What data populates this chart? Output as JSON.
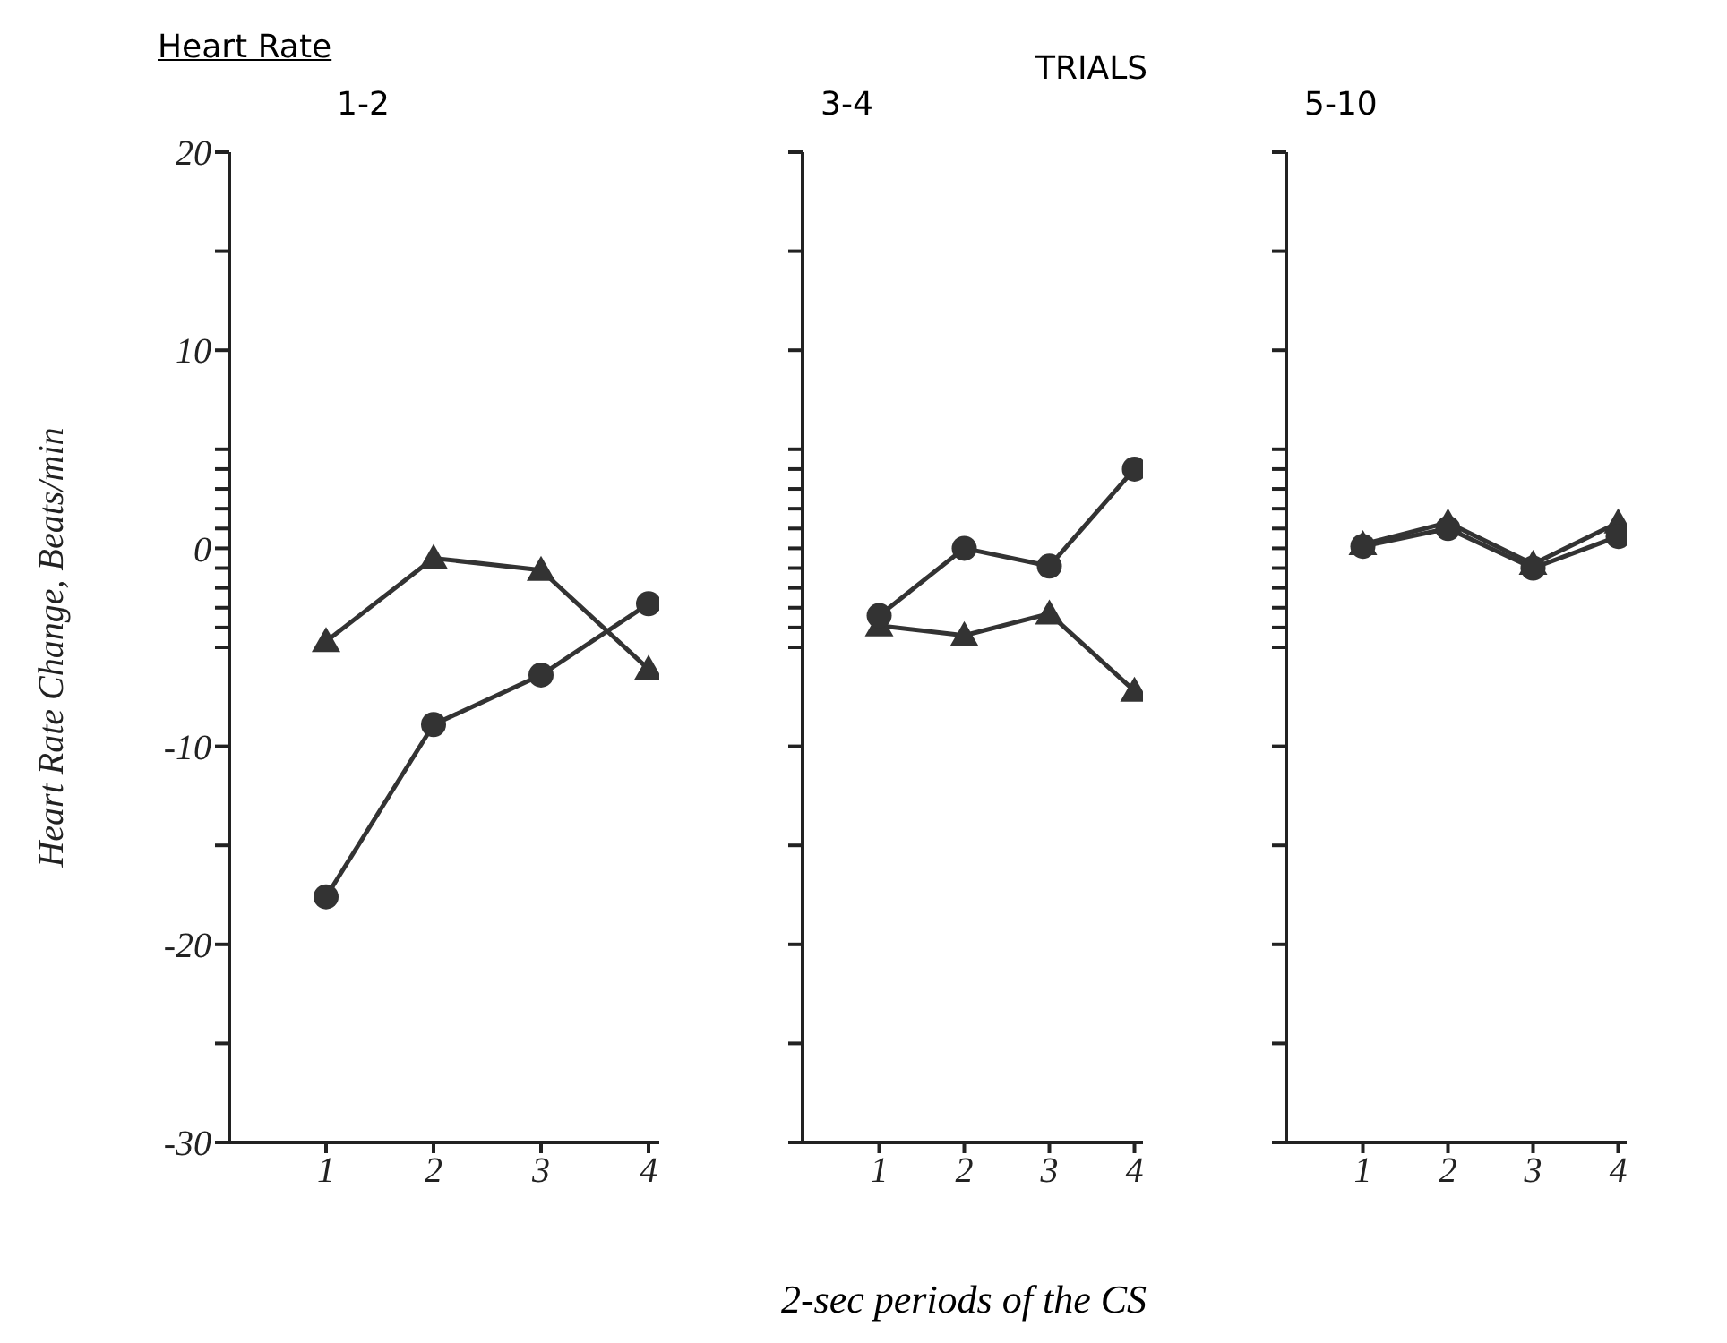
{
  "chart_data": [
    {
      "type": "line",
      "title": "1-2",
      "annotations": [
        "Heart Rate"
      ],
      "ylabel": "Heart Rate Change, Beats/min",
      "xlim": [
        0.1,
        4.1
      ],
      "xticks": [
        1,
        2,
        3,
        4
      ],
      "ylim": [
        -30,
        20
      ],
      "yticks": [
        -30,
        {
          "value": -25,
          "label": null
        },
        -20,
        {
          "value": -15,
          "label": null
        },
        -10,
        {
          "value": -5,
          "label": null
        },
        {
          "value": -4,
          "label": null
        },
        {
          "value": -3,
          "label": null
        },
        {
          "value": -2,
          "label": null
        },
        {
          "value": -1,
          "label": null
        },
        0,
        {
          "value": 1,
          "label": null
        },
        {
          "value": 2,
          "label": null
        },
        {
          "value": 3,
          "label": null
        },
        {
          "value": 4,
          "label": null
        },
        {
          "value": 5,
          "label": null
        },
        10,
        {
          "value": 15,
          "label": null
        },
        20
      ],
      "x": [
        1,
        2,
        3,
        4
      ],
      "line_style": "solid",
      "series": [
        {
          "color": "#333333",
          "marker": "triangle",
          "values": [
            -4.7,
            -0.5,
            -1.1,
            -6.1
          ]
        },
        {
          "color": "#333333",
          "marker": "circle",
          "values": [
            -17.6,
            -8.9,
            -6.4,
            -2.8
          ]
        }
      ]
    },
    {
      "type": "line",
      "title": "3-4",
      "annotations": [
        "TRIALS"
      ],
      "xlabel": "2-sec periods of the CS",
      "tick_labels": "x",
      "xlim": [
        0.1,
        4.1
      ],
      "xticks": [
        1,
        2,
        3,
        4
      ],
      "ylim": [
        -30,
        20
      ],
      "yticks": [
        -30,
        {
          "value": -25,
          "label": null
        },
        -20,
        {
          "value": -15,
          "label": null
        },
        -10,
        {
          "value": -5,
          "label": null
        },
        {
          "value": -4,
          "label": null
        },
        {
          "value": -3,
          "label": null
        },
        {
          "value": -2,
          "label": null
        },
        {
          "value": -1,
          "label": null
        },
        0,
        {
          "value": 1,
          "label": null
        },
        {
          "value": 2,
          "label": null
        },
        {
          "value": 3,
          "label": null
        },
        {
          "value": 4,
          "label": null
        },
        {
          "value": 5,
          "label": null
        },
        10,
        {
          "value": 15,
          "label": null
        },
        20
      ],
      "x": [
        1,
        2,
        3,
        4
      ],
      "line_style": "solid",
      "series": [
        {
          "color": "#333333",
          "marker": "triangle",
          "values": [
            -3.9,
            -4.4,
            -3.3,
            -7.2
          ]
        },
        {
          "color": "#333333",
          "marker": "circle",
          "values": [
            -3.4,
            0,
            -0.9,
            4.0
          ]
        }
      ]
    },
    {
      "type": "line",
      "title": "5-10",
      "tick_labels": "x",
      "xlim": [
        0.1,
        4.1
      ],
      "xticks": [
        1,
        2,
        3,
        4
      ],
      "ylim": [
        -30,
        20
      ],
      "yticks": [
        -30,
        {
          "value": -25,
          "label": null
        },
        -20,
        {
          "value": -15,
          "label": null
        },
        -10,
        {
          "value": -5,
          "label": null
        },
        {
          "value": -4,
          "label": null
        },
        {
          "value": -3,
          "label": null
        },
        {
          "value": -2,
          "label": null
        },
        {
          "value": -1,
          "label": null
        },
        0,
        {
          "value": 1,
          "label": null
        },
        {
          "value": 2,
          "label": null
        },
        {
          "value": 3,
          "label": null
        },
        {
          "value": 4,
          "label": null
        },
        {
          "value": 5,
          "label": null
        },
        10,
        {
          "value": 15,
          "label": null
        },
        20
      ],
      "x": [
        1,
        2,
        3,
        4
      ],
      "line_style": "solid",
      "series": [
        {
          "color": "#333333",
          "marker": "triangle",
          "values": [
            0.2,
            1.3,
            -0.8,
            1.3
          ]
        },
        {
          "color": "#333333",
          "marker": "circle",
          "values": [
            0.1,
            1.0,
            -1.0,
            0.6
          ]
        }
      ]
    }
  ]
}
